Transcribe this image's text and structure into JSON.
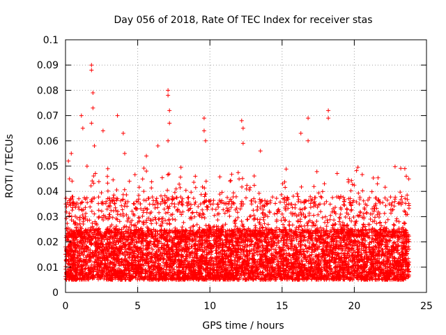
{
  "chart_data": {
    "type": "scatter",
    "title": "Day 056 of 2018, Rate Of TEC Index for receiver stas",
    "xlabel": "GPS time / hours",
    "ylabel": "ROTI / TECUs",
    "xlim": [
      0,
      25
    ],
    "ylim": [
      0,
      0.1
    ],
    "grid": true,
    "marker": "+",
    "series_color": "#ff0000",
    "x_ticks": [
      {
        "value": 0,
        "label": "0"
      },
      {
        "value": 5,
        "label": "5"
      },
      {
        "value": 10,
        "label": "10"
      },
      {
        "value": 15,
        "label": "15"
      },
      {
        "value": 20,
        "label": "20"
      },
      {
        "value": 25,
        "label": "25"
      }
    ],
    "y_ticks": [
      {
        "value": 0,
        "label": "0"
      },
      {
        "value": 0.01,
        "label": "0.01"
      },
      {
        "value": 0.02,
        "label": "0.02"
      },
      {
        "value": 0.03,
        "label": "0.03"
      },
      {
        "value": 0.04,
        "label": "0.04"
      },
      {
        "value": 0.05,
        "label": "0.05"
      },
      {
        "value": 0.06,
        "label": "0.06"
      },
      {
        "value": 0.07,
        "label": "0.07"
      },
      {
        "value": 0.08,
        "label": "0.08"
      },
      {
        "value": 0.09,
        "label": "0.09"
      },
      {
        "value": 0.1,
        "label": "0.1"
      }
    ],
    "data_x_range": [
      0,
      23.8
    ],
    "typical_band": [
      0.005,
      0.025
    ],
    "notable_peaks": [
      {
        "x": 0.2,
        "y": 0.052
      },
      {
        "x": 0.4,
        "y": 0.055
      },
      {
        "x": 1.1,
        "y": 0.07
      },
      {
        "x": 1.2,
        "y": 0.065
      },
      {
        "x": 1.8,
        "y": 0.09
      },
      {
        "x": 1.8,
        "y": 0.088
      },
      {
        "x": 1.9,
        "y": 0.079
      },
      {
        "x": 1.9,
        "y": 0.073
      },
      {
        "x": 1.8,
        "y": 0.067
      },
      {
        "x": 2.0,
        "y": 0.058
      },
      {
        "x": 2.6,
        "y": 0.064
      },
      {
        "x": 3.6,
        "y": 0.07
      },
      {
        "x": 4.0,
        "y": 0.063
      },
      {
        "x": 4.1,
        "y": 0.055
      },
      {
        "x": 5.6,
        "y": 0.054
      },
      {
        "x": 6.4,
        "y": 0.058
      },
      {
        "x": 7.1,
        "y": 0.08
      },
      {
        "x": 7.1,
        "y": 0.078
      },
      {
        "x": 7.2,
        "y": 0.072
      },
      {
        "x": 7.2,
        "y": 0.067
      },
      {
        "x": 7.1,
        "y": 0.06
      },
      {
        "x": 9.6,
        "y": 0.069
      },
      {
        "x": 9.6,
        "y": 0.064
      },
      {
        "x": 9.7,
        "y": 0.06
      },
      {
        "x": 12.2,
        "y": 0.068
      },
      {
        "x": 12.3,
        "y": 0.065
      },
      {
        "x": 12.3,
        "y": 0.059
      },
      {
        "x": 13.5,
        "y": 0.056
      },
      {
        "x": 16.3,
        "y": 0.063
      },
      {
        "x": 16.8,
        "y": 0.069
      },
      {
        "x": 16.8,
        "y": 0.06
      },
      {
        "x": 18.2,
        "y": 0.072
      },
      {
        "x": 18.2,
        "y": 0.069
      },
      {
        "x": 23.5,
        "y": 0.049
      },
      {
        "x": 23.6,
        "y": 0.046
      }
    ]
  }
}
